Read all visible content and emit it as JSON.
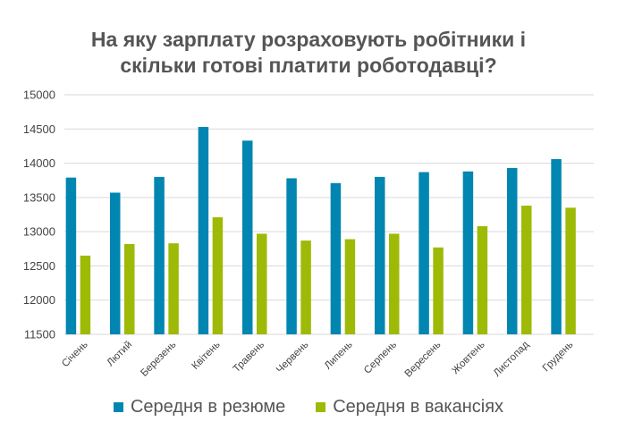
{
  "chart_data": {
    "type": "bar",
    "title": [
      "На яку зарплату розраховують робітники і",
      "скільки готові платити роботодавці?"
    ],
    "categories": [
      "Січень",
      "Лютий",
      "Березень",
      "Квітень",
      "Травень",
      "Червень",
      "Липень",
      "Серпень",
      "Вересень",
      "Жовтень",
      "Листопад",
      "Грудень"
    ],
    "series": [
      {
        "name": "Середня в резюме",
        "color": "#0086b0",
        "values": [
          13790,
          13570,
          13800,
          14530,
          14330,
          13780,
          13710,
          13800,
          13870,
          13880,
          13930,
          14060
        ]
      },
      {
        "name": "Середня в вакансіях",
        "color": "#9eba07",
        "values": [
          12650,
          12820,
          12830,
          13210,
          12970,
          12870,
          12890,
          12970,
          12770,
          13080,
          13380,
          13350
        ]
      }
    ],
    "ylim": [
      11500,
      15000
    ],
    "yticks": [
      11500,
      12000,
      12500,
      13000,
      13500,
      14000,
      14500,
      15000
    ],
    "grid": true,
    "legend_position": "bottom"
  }
}
